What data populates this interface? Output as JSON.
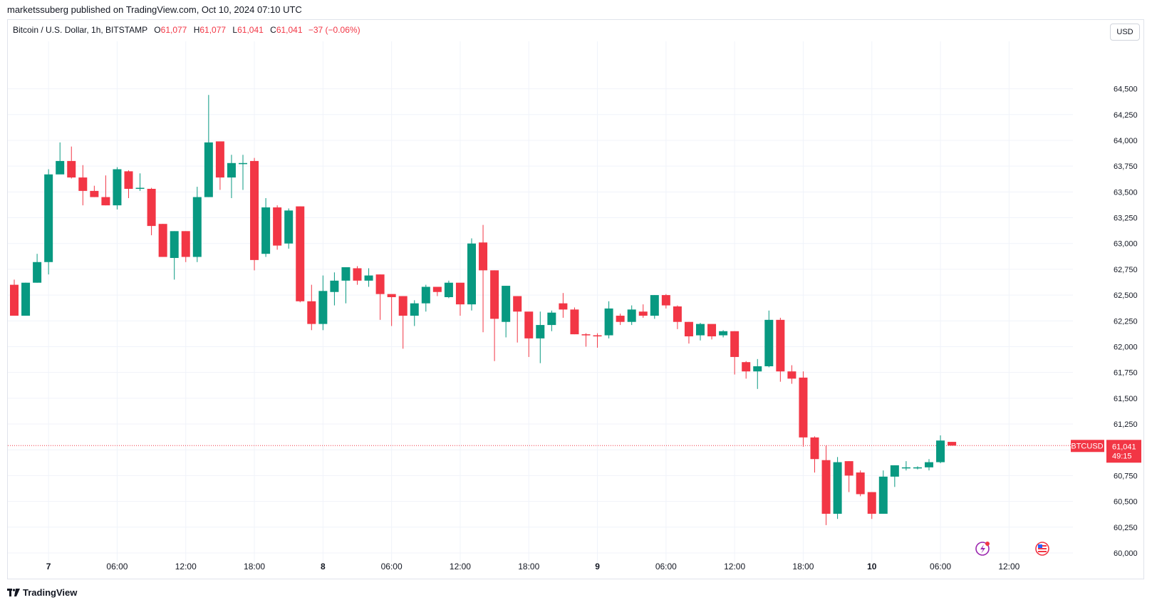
{
  "header": {
    "publisher_line": "marketssuberg published on TradingView.com, Oct 10, 2024 07:10 UTC"
  },
  "legend": {
    "symbol": "Bitcoin / U.S. Dollar, 1h, BITSTAMP",
    "open_label": "O",
    "open": "61,077",
    "high_label": "H",
    "high": "61,077",
    "low_label": "L",
    "low": "61,041",
    "close_label": "C",
    "close": "61,041",
    "change": "−37 (−0.06%)"
  },
  "currency_button": "USD",
  "price_tag": {
    "ticker": "BTCUSD",
    "price": "61,041",
    "countdown": "49:15"
  },
  "footer": {
    "brand": "TradingView"
  },
  "icons": [
    "lightning-event-icon",
    "us-flag-event-icon",
    "tradingview-logo-icon"
  ],
  "colors": {
    "up": "#089981",
    "down": "#f23645",
    "grid": "#f0f3fa",
    "text": "#131722"
  },
  "chart_data": {
    "type": "candlestick",
    "timeframe": "1h",
    "y_ticks": [
      60000,
      60250,
      60500,
      60750,
      61000,
      61250,
      61500,
      61750,
      62000,
      62250,
      62500,
      62750,
      63000,
      63250,
      63500,
      63750,
      64000,
      64250,
      64500
    ],
    "y_tick_labels": [
      "60,000",
      "60,250",
      "60,500",
      "60,750",
      "",
      "61,250",
      "61,500",
      "61,750",
      "62,000",
      "62,250",
      "62,500",
      "62,750",
      "63,000",
      "63,250",
      "63,500",
      "63,750",
      "64,000",
      "64,250",
      "64,500"
    ],
    "ylim": [
      59910,
      64960
    ],
    "x_ticks": [
      {
        "index": 3,
        "label": "7",
        "bold": true
      },
      {
        "index": 9,
        "label": "06:00"
      },
      {
        "index": 15,
        "label": "12:00"
      },
      {
        "index": 21,
        "label": "18:00"
      },
      {
        "index": 27,
        "label": "8",
        "bold": true
      },
      {
        "index": 33,
        "label": "06:00"
      },
      {
        "index": 39,
        "label": "12:00"
      },
      {
        "index": 45,
        "label": "18:00"
      },
      {
        "index": 51,
        "label": "9",
        "bold": true
      },
      {
        "index": 57,
        "label": "06:00"
      },
      {
        "index": 63,
        "label": "12:00"
      },
      {
        "index": 69,
        "label": "18:00"
      },
      {
        "index": 75,
        "label": "10",
        "bold": true
      },
      {
        "index": 81,
        "label": "06:00"
      },
      {
        "index": 87,
        "label": "12:00"
      }
    ],
    "last_price": 61041,
    "candles": [
      {
        "o": 62600,
        "h": 62650,
        "l": 62300,
        "c": 62300
      },
      {
        "o": 62300,
        "h": 62620,
        "l": 62300,
        "c": 62620
      },
      {
        "o": 62620,
        "h": 62900,
        "l": 62620,
        "c": 62820
      },
      {
        "o": 62820,
        "h": 63720,
        "l": 62700,
        "c": 63670
      },
      {
        "o": 63670,
        "h": 63980,
        "l": 63680,
        "c": 63800
      },
      {
        "o": 63800,
        "h": 63940,
        "l": 63630,
        "c": 63640
      },
      {
        "o": 63640,
        "h": 63760,
        "l": 63370,
        "c": 63510
      },
      {
        "o": 63510,
        "h": 63560,
        "l": 63450,
        "c": 63450
      },
      {
        "o": 63450,
        "h": 63660,
        "l": 63370,
        "c": 63370
      },
      {
        "o": 63370,
        "h": 63740,
        "l": 63330,
        "c": 63720
      },
      {
        "o": 63700,
        "h": 63710,
        "l": 63440,
        "c": 63530
      },
      {
        "o": 63530,
        "h": 63680,
        "l": 63510,
        "c": 63540
      },
      {
        "o": 63530,
        "h": 63540,
        "l": 63080,
        "c": 63170
      },
      {
        "o": 63190,
        "h": 63190,
        "l": 62870,
        "c": 62870
      },
      {
        "o": 62860,
        "h": 63120,
        "l": 62650,
        "c": 63120
      },
      {
        "o": 63120,
        "h": 63120,
        "l": 62820,
        "c": 62870
      },
      {
        "o": 62870,
        "h": 63550,
        "l": 62820,
        "c": 63450
      },
      {
        "o": 63450,
        "h": 64440,
        "l": 63450,
        "c": 63980
      },
      {
        "o": 63990,
        "h": 63980,
        "l": 63520,
        "c": 63640
      },
      {
        "o": 63640,
        "h": 63860,
        "l": 63440,
        "c": 63780
      },
      {
        "o": 63780,
        "h": 63860,
        "l": 63520,
        "c": 63780
      },
      {
        "o": 63800,
        "h": 63830,
        "l": 62740,
        "c": 62840
      },
      {
        "o": 62900,
        "h": 63440,
        "l": 62870,
        "c": 63350
      },
      {
        "o": 63350,
        "h": 63370,
        "l": 62940,
        "c": 62980
      },
      {
        "o": 63000,
        "h": 63340,
        "l": 62950,
        "c": 63320
      },
      {
        "o": 63360,
        "h": 63360,
        "l": 62430,
        "c": 62440
      },
      {
        "o": 62440,
        "h": 62600,
        "l": 62160,
        "c": 62220
      },
      {
        "o": 62220,
        "h": 62690,
        "l": 62160,
        "c": 62540
      },
      {
        "o": 62530,
        "h": 62720,
        "l": 62400,
        "c": 62640
      },
      {
        "o": 62640,
        "h": 62770,
        "l": 62420,
        "c": 62770
      },
      {
        "o": 62760,
        "h": 62780,
        "l": 62600,
        "c": 62640
      },
      {
        "o": 62640,
        "h": 62760,
        "l": 62580,
        "c": 62690
      },
      {
        "o": 62700,
        "h": 62700,
        "l": 62260,
        "c": 62510
      },
      {
        "o": 62510,
        "h": 62500,
        "l": 62200,
        "c": 62480
      },
      {
        "o": 62490,
        "h": 62490,
        "l": 61980,
        "c": 62300
      },
      {
        "o": 62300,
        "h": 62450,
        "l": 62200,
        "c": 62420
      },
      {
        "o": 62420,
        "h": 62600,
        "l": 62340,
        "c": 62580
      },
      {
        "o": 62580,
        "h": 62560,
        "l": 62490,
        "c": 62530
      },
      {
        "o": 62480,
        "h": 62640,
        "l": 62470,
        "c": 62620
      },
      {
        "o": 62620,
        "h": 62600,
        "l": 62300,
        "c": 62410
      },
      {
        "o": 62410,
        "h": 63050,
        "l": 62350,
        "c": 63000
      },
      {
        "o": 63010,
        "h": 63180,
        "l": 62140,
        "c": 62740
      },
      {
        "o": 62740,
        "h": 62740,
        "l": 61860,
        "c": 62270
      },
      {
        "o": 62240,
        "h": 62590,
        "l": 62090,
        "c": 62590
      },
      {
        "o": 62490,
        "h": 62490,
        "l": 62040,
        "c": 62340
      },
      {
        "o": 62340,
        "h": 62330,
        "l": 61900,
        "c": 62080
      },
      {
        "o": 62080,
        "h": 62340,
        "l": 61840,
        "c": 62210
      },
      {
        "o": 62210,
        "h": 62350,
        "l": 62150,
        "c": 62330
      },
      {
        "o": 62420,
        "h": 62520,
        "l": 62280,
        "c": 62360
      },
      {
        "o": 62360,
        "h": 62380,
        "l": 62120,
        "c": 62120
      },
      {
        "o": 62120,
        "h": 62130,
        "l": 62000,
        "c": 62110
      },
      {
        "o": 62110,
        "h": 62130,
        "l": 61990,
        "c": 62100
      },
      {
        "o": 62110,
        "h": 62440,
        "l": 62080,
        "c": 62370
      },
      {
        "o": 62300,
        "h": 62320,
        "l": 62210,
        "c": 62240
      },
      {
        "o": 62240,
        "h": 62400,
        "l": 62210,
        "c": 62360
      },
      {
        "o": 62340,
        "h": 62410,
        "l": 62280,
        "c": 62300
      },
      {
        "o": 62300,
        "h": 62500,
        "l": 62270,
        "c": 62500
      },
      {
        "o": 62500,
        "h": 62510,
        "l": 62370,
        "c": 62400
      },
      {
        "o": 62390,
        "h": 62400,
        "l": 62170,
        "c": 62240
      },
      {
        "o": 62240,
        "h": 62240,
        "l": 62030,
        "c": 62100
      },
      {
        "o": 62110,
        "h": 62230,
        "l": 62060,
        "c": 62220
      },
      {
        "o": 62220,
        "h": 62210,
        "l": 62070,
        "c": 62100
      },
      {
        "o": 62110,
        "h": 62160,
        "l": 62090,
        "c": 62150
      },
      {
        "o": 62150,
        "h": 62150,
        "l": 61730,
        "c": 61900
      },
      {
        "o": 61850,
        "h": 61860,
        "l": 61690,
        "c": 61760
      },
      {
        "o": 61760,
        "h": 61880,
        "l": 61590,
        "c": 61810
      },
      {
        "o": 61810,
        "h": 62350,
        "l": 61800,
        "c": 62260
      },
      {
        "o": 62260,
        "h": 62280,
        "l": 61660,
        "c": 61760
      },
      {
        "o": 61760,
        "h": 61820,
        "l": 61640,
        "c": 61690
      },
      {
        "o": 61700,
        "h": 61760,
        "l": 61030,
        "c": 61120
      },
      {
        "o": 61120,
        "h": 61130,
        "l": 60780,
        "c": 60910
      },
      {
        "o": 60900,
        "h": 61040,
        "l": 60270,
        "c": 60380
      },
      {
        "o": 60380,
        "h": 60930,
        "l": 60330,
        "c": 60880
      },
      {
        "o": 60890,
        "h": 60890,
        "l": 60590,
        "c": 60750
      },
      {
        "o": 60780,
        "h": 60800,
        "l": 60550,
        "c": 60570
      },
      {
        "o": 60590,
        "h": 60590,
        "l": 60330,
        "c": 60380
      },
      {
        "o": 60380,
        "h": 60800,
        "l": 60380,
        "c": 60740
      },
      {
        "o": 60740,
        "h": 60850,
        "l": 60640,
        "c": 60850
      },
      {
        "o": 60830,
        "h": 60890,
        "l": 60800,
        "c": 60830
      },
      {
        "o": 60830,
        "h": 60840,
        "l": 60810,
        "c": 60830
      },
      {
        "o": 60830,
        "h": 60910,
        "l": 60800,
        "c": 60880
      },
      {
        "o": 60880,
        "h": 61140,
        "l": 60870,
        "c": 61090
      },
      {
        "o": 61077,
        "h": 61077,
        "l": 61041,
        "c": 61041
      }
    ]
  }
}
